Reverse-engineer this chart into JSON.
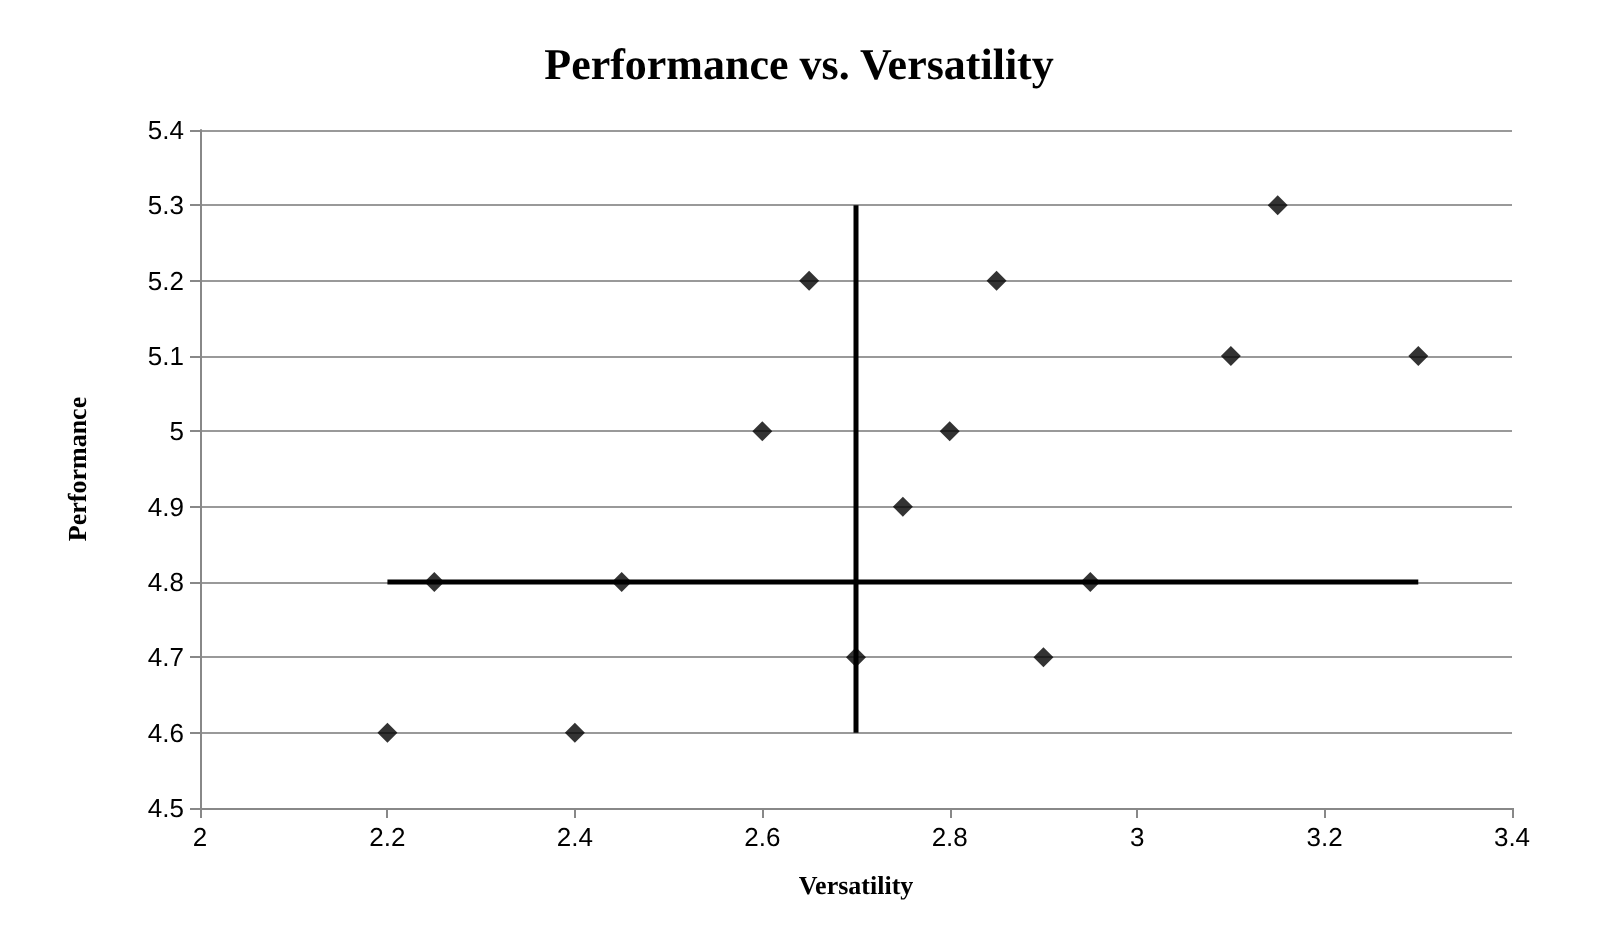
{
  "chart_data": {
    "type": "scatter",
    "title": "Performance vs. Versatility",
    "xlabel": "Versatility",
    "ylabel": "Performance",
    "xlim": [
      2,
      3.4
    ],
    "xticks": [
      2,
      2.2,
      2.4,
      2.6,
      2.8,
      3,
      3.2,
      3.4
    ],
    "ylim": [
      4.5,
      5.4
    ],
    "yticks": [
      4.5,
      4.6,
      4.7,
      4.8,
      4.9,
      5,
      5.1,
      5.2,
      5.3,
      5.4
    ],
    "grid": "y",
    "marker": "diamond",
    "series": [
      {
        "color": "#000000",
        "x": [
          3.15,
          2.65,
          2.85,
          3.1,
          3.3,
          2.6,
          2.8,
          2.75,
          2.25,
          2.45,
          2.95,
          2.7,
          2.9,
          2.2,
          2.4
        ],
        "values": [
          5.3,
          5.2,
          5.2,
          5.1,
          5.1,
          5.0,
          5.0,
          4.9,
          4.8,
          4.8,
          4.8,
          4.7,
          4.7,
          4.6,
          4.6
        ]
      },
      {
        "type": "line",
        "color": "#000000",
        "marker": "none",
        "line_style": "solid",
        "x": [
          2.7,
          2.7
        ],
        "values": [
          4.6,
          5.3
        ]
      },
      {
        "type": "line",
        "color": "#000000",
        "marker": "none",
        "line_style": "solid",
        "x": [
          2.2,
          3.3
        ],
        "values": [
          4.8,
          4.8
        ]
      }
    ]
  }
}
